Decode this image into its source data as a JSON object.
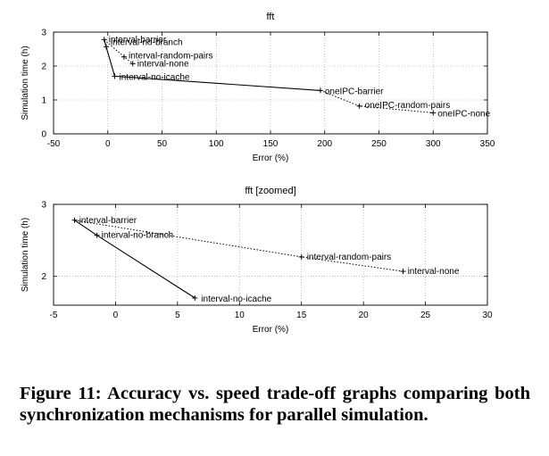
{
  "chart_data": [
    {
      "type": "line",
      "title": "fft",
      "xlabel": "Error (%)",
      "ylabel": "Simulation time (h)",
      "xlim": [
        -50,
        350
      ],
      "ylim": [
        0,
        3
      ],
      "xticks": [
        -50,
        0,
        50,
        100,
        150,
        200,
        250,
        300,
        350
      ],
      "yticks": [
        0,
        1,
        2,
        3
      ],
      "grid": true,
      "points": [
        {
          "label": "interval-barrier",
          "x": -3.3,
          "y": 2.78
        },
        {
          "label": "interval-no-branch",
          "x": -1.5,
          "y": 2.57
        },
        {
          "label": "interval-random-pairs",
          "x": 15,
          "y": 2.27
        },
        {
          "label": "interval-none",
          "x": 23,
          "y": 2.07
        },
        {
          "label": "interval-no-icache",
          "x": 6.4,
          "y": 1.7
        },
        {
          "label": "oneIPC-barrier",
          "x": 196,
          "y": 1.28
        },
        {
          "label": "oneIPC-random-pairs",
          "x": 232,
          "y": 0.82
        },
        {
          "label": "oneIPC-none",
          "x": 300,
          "y": 0.62
        }
      ],
      "series": [
        {
          "style": "solid",
          "points": [
            "interval-barrier",
            "interval-no-branch",
            "interval-no-icache",
            "oneIPC-barrier"
          ]
        },
        {
          "style": "dotted",
          "points": [
            "interval-barrier",
            "interval-random-pairs",
            "interval-none"
          ]
        },
        {
          "style": "dotted",
          "points": [
            "oneIPC-barrier",
            "oneIPC-random-pairs",
            "oneIPC-none"
          ]
        }
      ]
    },
    {
      "type": "line",
      "title": "fft [zoomed]",
      "xlabel": "Error (%)",
      "ylabel": "Simulation time (h)",
      "xlim": [
        -5,
        30
      ],
      "ylim": [
        1.6,
        3
      ],
      "xticks": [
        -5,
        0,
        5,
        10,
        15,
        20,
        25,
        30
      ],
      "yticks": [
        2,
        3
      ],
      "grid": true,
      "points": [
        {
          "label": "interval-barrier",
          "x": -3.3,
          "y": 2.78
        },
        {
          "label": "interval-no-branch",
          "x": -1.5,
          "y": 2.57
        },
        {
          "label": "interval-random-pairs",
          "x": 15,
          "y": 2.27
        },
        {
          "label": "interval-none",
          "x": 23.2,
          "y": 2.07
        },
        {
          "label": "interval-no-icache",
          "x": 6.4,
          "y": 1.7
        }
      ],
      "series": [
        {
          "style": "solid",
          "points": [
            "interval-barrier",
            "interval-no-branch",
            "interval-no-icache"
          ]
        },
        {
          "style": "dotted",
          "points": [
            "interval-barrier",
            "interval-random-pairs",
            "interval-none"
          ]
        }
      ]
    }
  ],
  "caption": "Figure 11: Accuracy vs. speed trade-off graphs comparing both synchronization mechanisms for parallel simulation."
}
